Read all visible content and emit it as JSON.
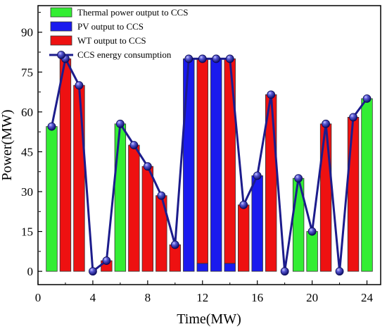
{
  "chart_data": {
    "type": "bar",
    "xlabel": "Time(MW)",
    "ylabel": "Power(MW)",
    "xlim": [
      0,
      25
    ],
    "ylim": [
      -5,
      100
    ],
    "xticks": [
      0,
      4,
      8,
      12,
      16,
      20,
      24
    ],
    "yticks": [
      0,
      15,
      30,
      45,
      60,
      75,
      90
    ],
    "legend_position": "top-left",
    "x": [
      1,
      2,
      3,
      4,
      5,
      6,
      7,
      8,
      9,
      10,
      11,
      12,
      13,
      14,
      15,
      16,
      17,
      18,
      19,
      20,
      21,
      22,
      23,
      24
    ],
    "series": [
      {
        "name": "Thermal power output to CCS",
        "type": "bar",
        "color": "#33ee33",
        "values": [
          54.5,
          0,
          0,
          0,
          0,
          55.5,
          0,
          0,
          0,
          0,
          0,
          0,
          0,
          0,
          0,
          0,
          0,
          0,
          35,
          15,
          0,
          0,
          0,
          65
        ]
      },
      {
        "name": "PV output to CCS",
        "type": "bar",
        "color": "#1a1aee",
        "values": [
          0,
          0,
          0,
          0,
          0,
          0,
          0,
          0,
          0,
          0,
          80,
          3,
          80,
          3,
          0,
          36,
          0,
          0,
          0,
          0,
          0,
          0,
          0,
          0
        ]
      },
      {
        "name": "WT output to CCS",
        "type": "bar",
        "color": "#ee1111",
        "values": [
          0,
          80,
          70,
          0,
          4,
          0,
          47.5,
          39.5,
          28.5,
          10,
          0,
          77,
          0,
          77,
          25,
          0,
          66.5,
          0,
          0,
          0,
          55.5,
          0,
          58,
          0
        ]
      },
      {
        "name": "CCS energy consumption",
        "type": "line",
        "color": "#1c1c8c",
        "values": [
          54.5,
          80,
          70,
          0,
          4,
          55.5,
          47.5,
          39.5,
          28.5,
          10,
          80,
          80,
          80,
          80,
          25,
          36,
          66.5,
          0,
          35,
          15,
          55.5,
          0,
          58,
          65
        ]
      }
    ]
  }
}
